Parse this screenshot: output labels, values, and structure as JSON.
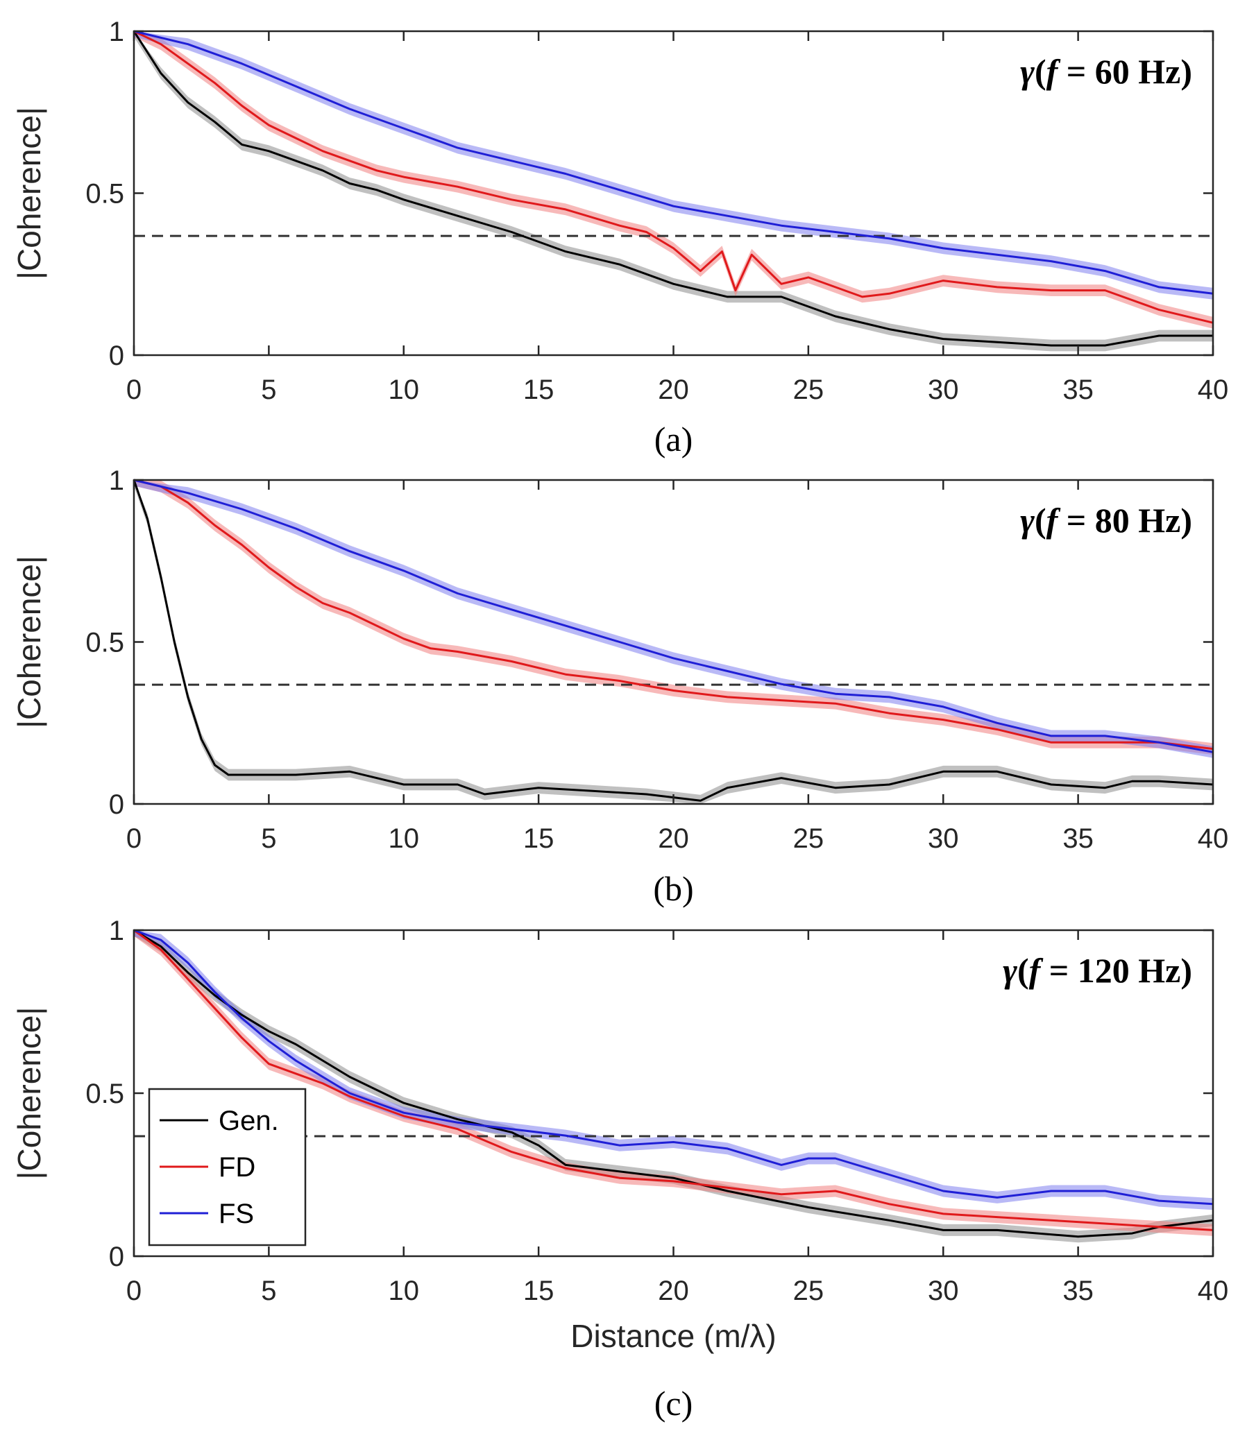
{
  "chart_data": [
    {
      "type": "line",
      "panel_label": "(a)",
      "annotation": {
        "symbol": "γ",
        "open": "(",
        "var": "f",
        "rest": " = 60 Hz)"
      },
      "xlabel": "",
      "ylabel": "|Coherence|",
      "xlim": [
        0,
        40
      ],
      "ylim": [
        0,
        1
      ],
      "xticks": [
        "0",
        "5",
        "10",
        "15",
        "20",
        "25",
        "30",
        "35",
        "40"
      ],
      "yticks": [
        "0",
        "0.5",
        "1"
      ],
      "reference_line": 0.368,
      "band_halfwidth": 0.018,
      "series": [
        {
          "name": "Gen.",
          "color": "#000000",
          "band": "#8c8c8c",
          "x": [
            0,
            1,
            2,
            3,
            4,
            5,
            6,
            7,
            8,
            9,
            10,
            12,
            14,
            16,
            18,
            20,
            22,
            24,
            26,
            28,
            30,
            32,
            34,
            36,
            38,
            40
          ],
          "y": [
            1.0,
            0.87,
            0.78,
            0.72,
            0.65,
            0.63,
            0.6,
            0.57,
            0.53,
            0.51,
            0.48,
            0.43,
            0.38,
            0.32,
            0.28,
            0.22,
            0.18,
            0.18,
            0.12,
            0.08,
            0.05,
            0.04,
            0.03,
            0.03,
            0.06,
            0.06
          ]
        },
        {
          "name": "FD",
          "color": "#e0191b",
          "band": "#f08080",
          "x": [
            0,
            1,
            2,
            3,
            4,
            5,
            6,
            7,
            8,
            9,
            10,
            12,
            14,
            16,
            18,
            19,
            20,
            21,
            21.8,
            22.3,
            22.9,
            24,
            25,
            26,
            27,
            28,
            30,
            32,
            34,
            36,
            38,
            40
          ],
          "y": [
            1.0,
            0.96,
            0.9,
            0.84,
            0.77,
            0.71,
            0.67,
            0.63,
            0.6,
            0.57,
            0.55,
            0.52,
            0.48,
            0.45,
            0.4,
            0.38,
            0.33,
            0.26,
            0.32,
            0.2,
            0.31,
            0.22,
            0.24,
            0.21,
            0.18,
            0.19,
            0.23,
            0.21,
            0.2,
            0.2,
            0.14,
            0.1
          ]
        },
        {
          "name": "FS",
          "color": "#1f1fd6",
          "band": "#8080ee",
          "x": [
            0,
            2,
            4,
            6,
            8,
            10,
            12,
            14,
            16,
            18,
            20,
            22,
            24,
            26,
            28,
            30,
            32,
            34,
            36,
            38,
            40
          ],
          "y": [
            1.0,
            0.96,
            0.9,
            0.83,
            0.76,
            0.7,
            0.64,
            0.6,
            0.56,
            0.51,
            0.46,
            0.43,
            0.4,
            0.38,
            0.36,
            0.33,
            0.31,
            0.29,
            0.26,
            0.21,
            0.19
          ]
        }
      ]
    },
    {
      "type": "line",
      "panel_label": "(b)",
      "annotation": {
        "symbol": "γ",
        "open": "(",
        "var": "f",
        "rest": " = 80 Hz)"
      },
      "xlabel": "",
      "ylabel": "|Coherence|",
      "xlim": [
        0,
        40
      ],
      "ylim": [
        0,
        1
      ],
      "xticks": [
        "0",
        "5",
        "10",
        "15",
        "20",
        "25",
        "30",
        "35",
        "40"
      ],
      "yticks": [
        "0",
        "0.5",
        "1"
      ],
      "reference_line": 0.368,
      "band_halfwidth": 0.018,
      "series": [
        {
          "name": "Gen.",
          "color": "#000000",
          "band": "#8c8c8c",
          "x": [
            0,
            0.5,
            1,
            1.5,
            2,
            2.5,
            3,
            3.5,
            4,
            5,
            6,
            8,
            10,
            12,
            13,
            15,
            17,
            19,
            21,
            22,
            24,
            26,
            28,
            30,
            32,
            34,
            36,
            37,
            38,
            40
          ],
          "y": [
            1.0,
            0.88,
            0.7,
            0.5,
            0.33,
            0.2,
            0.12,
            0.09,
            0.09,
            0.09,
            0.09,
            0.1,
            0.06,
            0.06,
            0.03,
            0.05,
            0.04,
            0.03,
            0.01,
            0.05,
            0.08,
            0.05,
            0.06,
            0.1,
            0.1,
            0.06,
            0.05,
            0.07,
            0.07,
            0.06
          ]
        },
        {
          "name": "FD",
          "color": "#e0191b",
          "band": "#f08080",
          "x": [
            0,
            1,
            2,
            3,
            4,
            5,
            6,
            7,
            8,
            9,
            10,
            11,
            12,
            14,
            16,
            18,
            20,
            22,
            24,
            26,
            28,
            30,
            32,
            34,
            36,
            38,
            40
          ],
          "y": [
            1.0,
            0.98,
            0.93,
            0.86,
            0.8,
            0.73,
            0.67,
            0.62,
            0.59,
            0.55,
            0.51,
            0.48,
            0.47,
            0.44,
            0.4,
            0.38,
            0.35,
            0.33,
            0.32,
            0.31,
            0.28,
            0.26,
            0.23,
            0.19,
            0.19,
            0.19,
            0.17
          ]
        },
        {
          "name": "FS",
          "color": "#1f1fd6",
          "band": "#8080ee",
          "x": [
            0,
            2,
            4,
            6,
            8,
            10,
            12,
            14,
            16,
            18,
            20,
            22,
            24,
            26,
            28,
            30,
            32,
            34,
            36,
            38,
            40
          ],
          "y": [
            1.0,
            0.96,
            0.91,
            0.85,
            0.78,
            0.72,
            0.65,
            0.6,
            0.55,
            0.5,
            0.45,
            0.41,
            0.37,
            0.34,
            0.33,
            0.3,
            0.25,
            0.21,
            0.21,
            0.19,
            0.16
          ]
        }
      ]
    },
    {
      "type": "line",
      "panel_label": "(c)",
      "annotation": {
        "symbol": "γ",
        "open": "(",
        "var": "f",
        "rest": " = 120 Hz)"
      },
      "xlabel": "Distance (m/λ)",
      "ylabel": "|Coherence|",
      "xlim": [
        0,
        40
      ],
      "ylim": [
        0,
        1
      ],
      "xticks": [
        "0",
        "5",
        "10",
        "15",
        "20",
        "25",
        "30",
        "35",
        "40"
      ],
      "yticks": [
        "0",
        "0.5",
        "1"
      ],
      "reference_line": 0.368,
      "band_halfwidth": 0.018,
      "legend": {
        "position": "bottom-left",
        "entries": [
          "Gen.",
          "FD",
          "FS"
        ]
      },
      "series": [
        {
          "name": "Gen.",
          "color": "#000000",
          "band": "#8c8c8c",
          "x": [
            0,
            1,
            2,
            3,
            4,
            5,
            6,
            7,
            8,
            10,
            12,
            14,
            15,
            16,
            17,
            20,
            22,
            25,
            28,
            30,
            32,
            35,
            37,
            38,
            40
          ],
          "y": [
            1.0,
            0.95,
            0.87,
            0.8,
            0.74,
            0.69,
            0.65,
            0.6,
            0.55,
            0.47,
            0.42,
            0.38,
            0.34,
            0.28,
            0.27,
            0.24,
            0.2,
            0.15,
            0.11,
            0.08,
            0.08,
            0.06,
            0.07,
            0.09,
            0.11
          ]
        },
        {
          "name": "FD",
          "color": "#e0191b",
          "band": "#f08080",
          "x": [
            0,
            1,
            2,
            3,
            4,
            5,
            6,
            7,
            8,
            10,
            12,
            14,
            16,
            18,
            20,
            22,
            24,
            26,
            28,
            30,
            32,
            34,
            36,
            38,
            40
          ],
          "y": [
            1.0,
            0.94,
            0.85,
            0.76,
            0.67,
            0.59,
            0.56,
            0.53,
            0.49,
            0.43,
            0.39,
            0.32,
            0.27,
            0.24,
            0.23,
            0.21,
            0.19,
            0.2,
            0.16,
            0.13,
            0.12,
            0.11,
            0.1,
            0.09,
            0.08
          ]
        },
        {
          "name": "FS",
          "color": "#1f1fd6",
          "band": "#8080ee",
          "x": [
            0,
            1,
            2,
            3,
            4,
            5,
            6,
            7,
            8,
            10,
            12,
            14,
            16,
            18,
            20,
            22,
            24,
            25,
            26,
            28,
            30,
            32,
            34,
            36,
            38,
            40
          ],
          "y": [
            1.0,
            0.97,
            0.9,
            0.81,
            0.73,
            0.66,
            0.6,
            0.55,
            0.5,
            0.44,
            0.41,
            0.39,
            0.37,
            0.34,
            0.35,
            0.33,
            0.28,
            0.3,
            0.3,
            0.25,
            0.2,
            0.18,
            0.2,
            0.2,
            0.17,
            0.16
          ]
        }
      ]
    }
  ]
}
